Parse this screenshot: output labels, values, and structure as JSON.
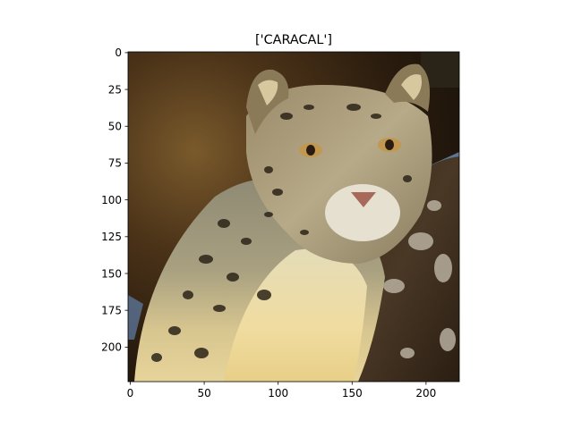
{
  "figure": {
    "title": "['CARACAL']",
    "image_subject": "snow leopard photograph",
    "colors": {
      "background": "#ffffff",
      "axis": "#000000"
    }
  },
  "axes": {
    "x": {
      "lim": [
        0,
        224
      ],
      "ticks": [
        0,
        50,
        100,
        150,
        200
      ]
    },
    "y": {
      "lim": [
        0,
        224
      ],
      "inverted": true,
      "ticks": [
        0,
        25,
        50,
        75,
        100,
        125,
        150,
        175,
        200
      ]
    },
    "grid": false
  }
}
